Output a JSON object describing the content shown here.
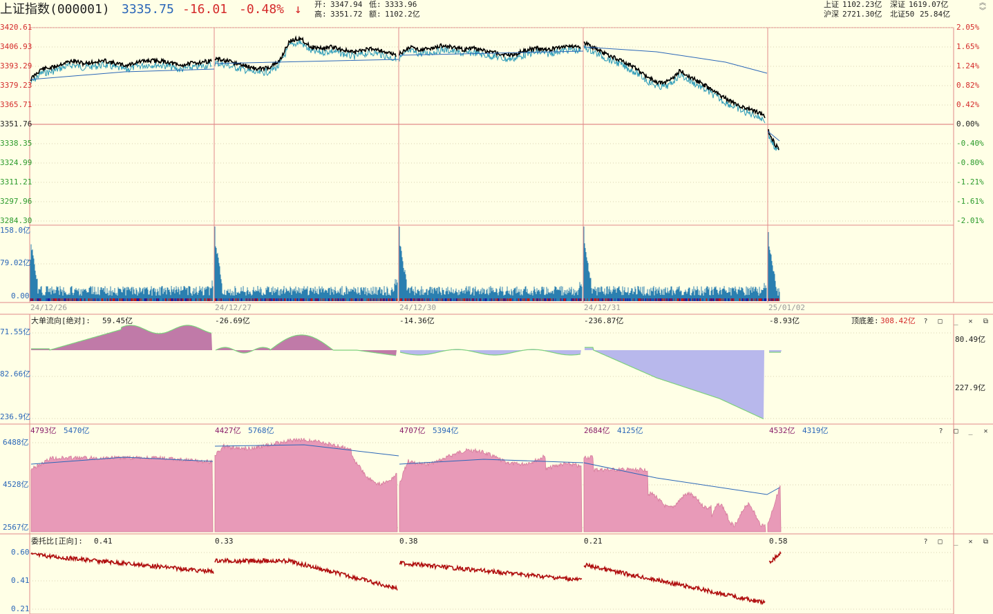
{
  "header": {
    "index_name": "上证指数(000001)",
    "price": "3335.75",
    "change": "-16.01",
    "change_pct": "-0.48%",
    "arrow": "↓",
    "open_label": "开:",
    "open": "3347.94",
    "low_label": "低:",
    "low": "3333.96",
    "high_label": "高:",
    "high": "3351.72",
    "amount_label": "额:",
    "amount": "1102.2亿",
    "markets": [
      {
        "label": "上证",
        "value": "1102.23亿"
      },
      {
        "label": "深证",
        "value": "1619.07亿"
      },
      {
        "label": "沪深",
        "value": "2721.30亿"
      },
      {
        "label": "北证50",
        "value": "25.84亿"
      }
    ]
  },
  "price_chart": {
    "y_labels": [
      "3420.61",
      "3406.93",
      "3393.29",
      "3379.23",
      "3365.71",
      "3351.76",
      "3338.35",
      "3324.99",
      "3311.21",
      "3297.96",
      "3284.30"
    ],
    "pct_labels": [
      "2.05%",
      "1.65%",
      "1.24%",
      "0.82%",
      "0.42%",
      "0.00%",
      "-0.40%",
      "-0.80%",
      "-1.21%",
      "-1.61%",
      "-2.01%"
    ],
    "prev_close": "3351.76"
  },
  "volume_chart": {
    "y_labels": [
      "158.0亿",
      "79.02亿",
      "0.00"
    ],
    "dates": [
      "24/12/26",
      "24/12/27",
      "24/12/30",
      "24/12/31",
      "25/01/02"
    ]
  },
  "bigorder_panel": {
    "title": "大单流向[绝对]:",
    "day_values": [
      "59.45亿",
      "-26.69亿",
      "-14.36亿",
      "-236.87亿",
      "-8.93亿"
    ],
    "diff_label": "顶底差:",
    "diff_value": "308.42亿",
    "left_labels": [
      "71.55亿",
      "82.66亿",
      "236.9亿"
    ],
    "right_labels": [
      "80.49亿",
      "227.9亿"
    ]
  },
  "buysell_panel": {
    "pairs": [
      [
        "4793亿",
        "5470亿"
      ],
      [
        "4427亿",
        "5768亿"
      ],
      [
        "4707亿",
        "5394亿"
      ],
      [
        "2684亿",
        "4125亿"
      ],
      [
        "4532亿",
        "4319亿"
      ]
    ],
    "left_labels": [
      "6488亿",
      "4528亿",
      "2567亿"
    ]
  },
  "commission_panel": {
    "title": "委托比[正向]:",
    "day_values": [
      "0.41",
      "0.33",
      "0.38",
      "0.21",
      "0.58"
    ],
    "left_labels": [
      "0.60",
      "0.41",
      "0.21"
    ]
  },
  "panel_buttons": [
    "?",
    "□",
    "_",
    "✕",
    "⧉"
  ],
  "colors": {
    "background": "#FFFFE6",
    "up_red": "#d42a2a",
    "down_green": "#2a9a2a",
    "price_line": "#000000",
    "cyan_line": "#2a9ab8",
    "avg_line": "#2a66b8",
    "volume_bar": "#2a7fb0",
    "inflow_area": "#c07aa8",
    "outflow_area": "#b8b8ec",
    "buysell_area": "#e89ab8",
    "commission_line": "#b01010"
  }
}
